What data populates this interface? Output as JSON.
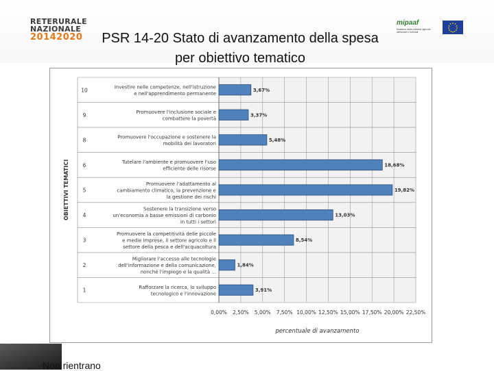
{
  "header": {
    "logo_left_line1": "RETERURALE",
    "logo_left_line2": "NAZIONALE",
    "logo_left_line3": "20142020",
    "logo_right_name": "mipaaf",
    "logo_right_sub": "Ministero delle politiche agricole alimentari e forestali",
    "title_line1": "PSR 14-20 Stato di avanzamento della spesa",
    "title_line2": "per obiettivo tematico"
  },
  "footer": {
    "text": "Non rientrano"
  },
  "colors": {
    "bar_fill": "#4f81bd",
    "bar_stroke": "#2e4f7a",
    "plot_bg": "#f2f2f2",
    "title_accent": "#e07a1c"
  },
  "chart_data": {
    "type": "bar",
    "orientation": "horizontal",
    "ylabel": "OBIETTIVI TEMATICI",
    "xlabel": "percentuale di avanzamento",
    "xlim": [
      0,
      22.5
    ],
    "xticks": [
      "0,00%",
      "2,50%",
      "5,00%",
      "7,50%",
      "10,00%",
      "12,50%",
      "15,00%",
      "17,50%",
      "20,00%",
      "22,50%"
    ],
    "grid": true,
    "categories": [
      {
        "code": "10",
        "label": [
          "Investire nelle competenze, nell'istruzione",
          "e nell'apprendimento permanente"
        ],
        "value": 3.67,
        "value_label": "3,67%"
      },
      {
        "code": "9",
        "label": [
          "Promuovere l'inclusione sociale e",
          "combattere la povertà"
        ],
        "value": 3.37,
        "value_label": "3,37%"
      },
      {
        "code": "8",
        "label": [
          "Promuovere l'occupazione e sostenere la",
          "mobilità dei lavoratori"
        ],
        "value": 5.48,
        "value_label": "5,48%"
      },
      {
        "code": "6",
        "label": [
          "Tutelare l'ambiente e promuovere l'uso",
          "efficiente delle risorse"
        ],
        "value": 18.68,
        "value_label": "18,68%"
      },
      {
        "code": "5",
        "label": [
          "Promuovere l'adattamento al",
          "cambiamento climatico, la prevenzione e",
          "la gestione dei rischi"
        ],
        "value": 19.82,
        "value_label": "19,82%"
      },
      {
        "code": "4",
        "label": [
          "Sostenere la transizione verso",
          "un'economia a basse emissioni di carbonio",
          "in tutti i settori"
        ],
        "value": 13.03,
        "value_label": "13,03%"
      },
      {
        "code": "3",
        "label": [
          "Promuovere la competitività delle piccole",
          "e medie imprese, il settore agricolo e il",
          "settore della pesca e dell'acquacoltura"
        ],
        "value": 8.54,
        "value_label": "8,54%"
      },
      {
        "code": "2",
        "label": [
          "Migliorare l'accesso alle tecnologie",
          "dell'informazione e della comunicazione,",
          "nonché l'impiego e la qualità ..."
        ],
        "value": 1.84,
        "value_label": "1,84%"
      },
      {
        "code": "1",
        "label": [
          "Rafforzare la ricerca, lo sviluppo",
          "tecnologico e l'innovazione"
        ],
        "value": 3.91,
        "value_label": "3,91%"
      }
    ]
  }
}
